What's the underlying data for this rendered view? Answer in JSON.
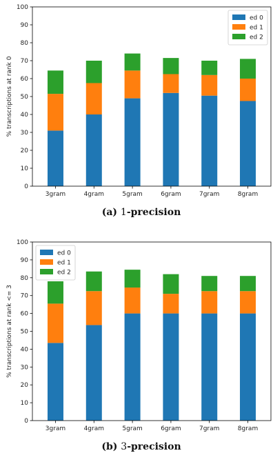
{
  "chart_data": [
    {
      "type": "bar",
      "stacked": true,
      "categories": [
        "3gram",
        "4gram",
        "5gram",
        "6gram",
        "7gram",
        "8gram"
      ],
      "series": [
        {
          "name": "ed 0",
          "color": "#1f77b4",
          "values": [
            31,
            40,
            49,
            52,
            50.5,
            47.5
          ]
        },
        {
          "name": "ed 1",
          "color": "#ff7f0e",
          "values": [
            20.5,
            17.5,
            15.5,
            10.5,
            11.5,
            12.5
          ]
        },
        {
          "name": "ed 2",
          "color": "#2ca02c",
          "values": [
            13,
            12.5,
            9.5,
            9,
            8,
            11
          ]
        }
      ],
      "ylabel": "% transcriptions at rank 0",
      "ylim": [
        0,
        100
      ],
      "yticks": [
        0,
        10,
        20,
        30,
        40,
        50,
        60,
        70,
        80,
        90,
        100
      ],
      "legend_position": "upper right",
      "caption": {
        "prefix": "(a) ",
        "number": "1",
        "suffix": "-precision"
      }
    },
    {
      "type": "bar",
      "stacked": true,
      "categories": [
        "3gram",
        "4gram",
        "5gram",
        "6gram",
        "7gram",
        "8gram"
      ],
      "series": [
        {
          "name": "ed 0",
          "color": "#1f77b4",
          "values": [
            43.5,
            53.5,
            60,
            60,
            60,
            60
          ]
        },
        {
          "name": "ed 1",
          "color": "#ff7f0e",
          "values": [
            22,
            19,
            14.5,
            11,
            12.5,
            12.5
          ]
        },
        {
          "name": "ed 2",
          "color": "#2ca02c",
          "values": [
            12.5,
            11,
            10,
            11,
            8.5,
            8.5
          ]
        }
      ],
      "ylabel": "% transcriptions at rank <= 3",
      "ylim": [
        0,
        100
      ],
      "yticks": [
        0,
        10,
        20,
        30,
        40,
        50,
        60,
        70,
        80,
        90,
        100
      ],
      "legend_position": "upper left",
      "caption": {
        "prefix": "(b) ",
        "number": "3",
        "suffix": "-precision"
      }
    }
  ]
}
